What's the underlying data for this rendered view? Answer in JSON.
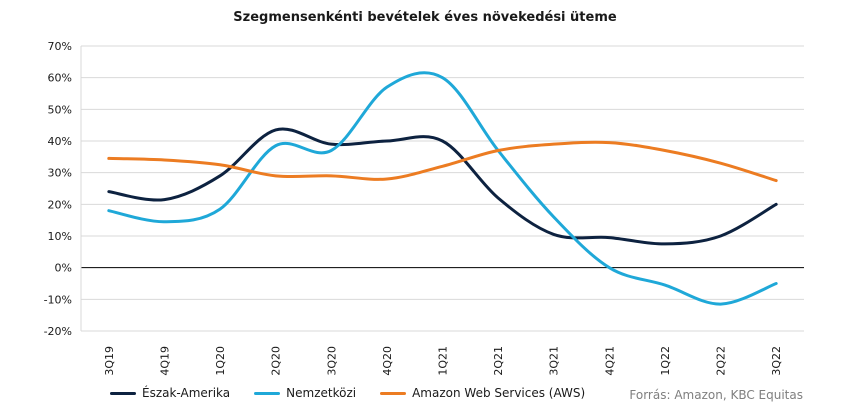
{
  "chart_data": {
    "type": "line",
    "title": "Szegmensenkénti bevételek éves növekedési üteme",
    "source": "Forrás: Amazon, KBC Equitas",
    "categories": [
      "3Q19",
      "4Q19",
      "1Q20",
      "2Q20",
      "3Q20",
      "4Q20",
      "1Q21",
      "2Q21",
      "3Q21",
      "4Q21",
      "1Q22",
      "2Q22",
      "3Q22"
    ],
    "ylim": [
      -20,
      70
    ],
    "ytick_labels": [
      "-20%",
      "-10%",
      "0%",
      "10%",
      "20%",
      "30%",
      "40%",
      "50%",
      "60%",
      "70%"
    ],
    "yticks": [
      -20,
      -10,
      0,
      10,
      20,
      30,
      40,
      50,
      60,
      70
    ],
    "grid": true,
    "legend": "bottom-left",
    "series": [
      {
        "name": "Észak-Amerika",
        "color": "#0d2240",
        "values": [
          24,
          21.5,
          29,
          43.5,
          39,
          40,
          40,
          22,
          10.5,
          9.5,
          7.5,
          10,
          20
        ]
      },
      {
        "name": "Nemzetközi",
        "color": "#1fa8d8",
        "values": [
          18,
          14.5,
          18.5,
          38.5,
          37,
          57,
          60,
          37,
          16,
          0,
          -5.5,
          -11.5,
          -5
        ]
      },
      {
        "name": "Amazon Web Services (AWS)",
        "color": "#ec7c22",
        "values": [
          34.5,
          34,
          32.5,
          29,
          29,
          28,
          32,
          37,
          39,
          39.5,
          37,
          33,
          27.5
        ]
      }
    ]
  }
}
